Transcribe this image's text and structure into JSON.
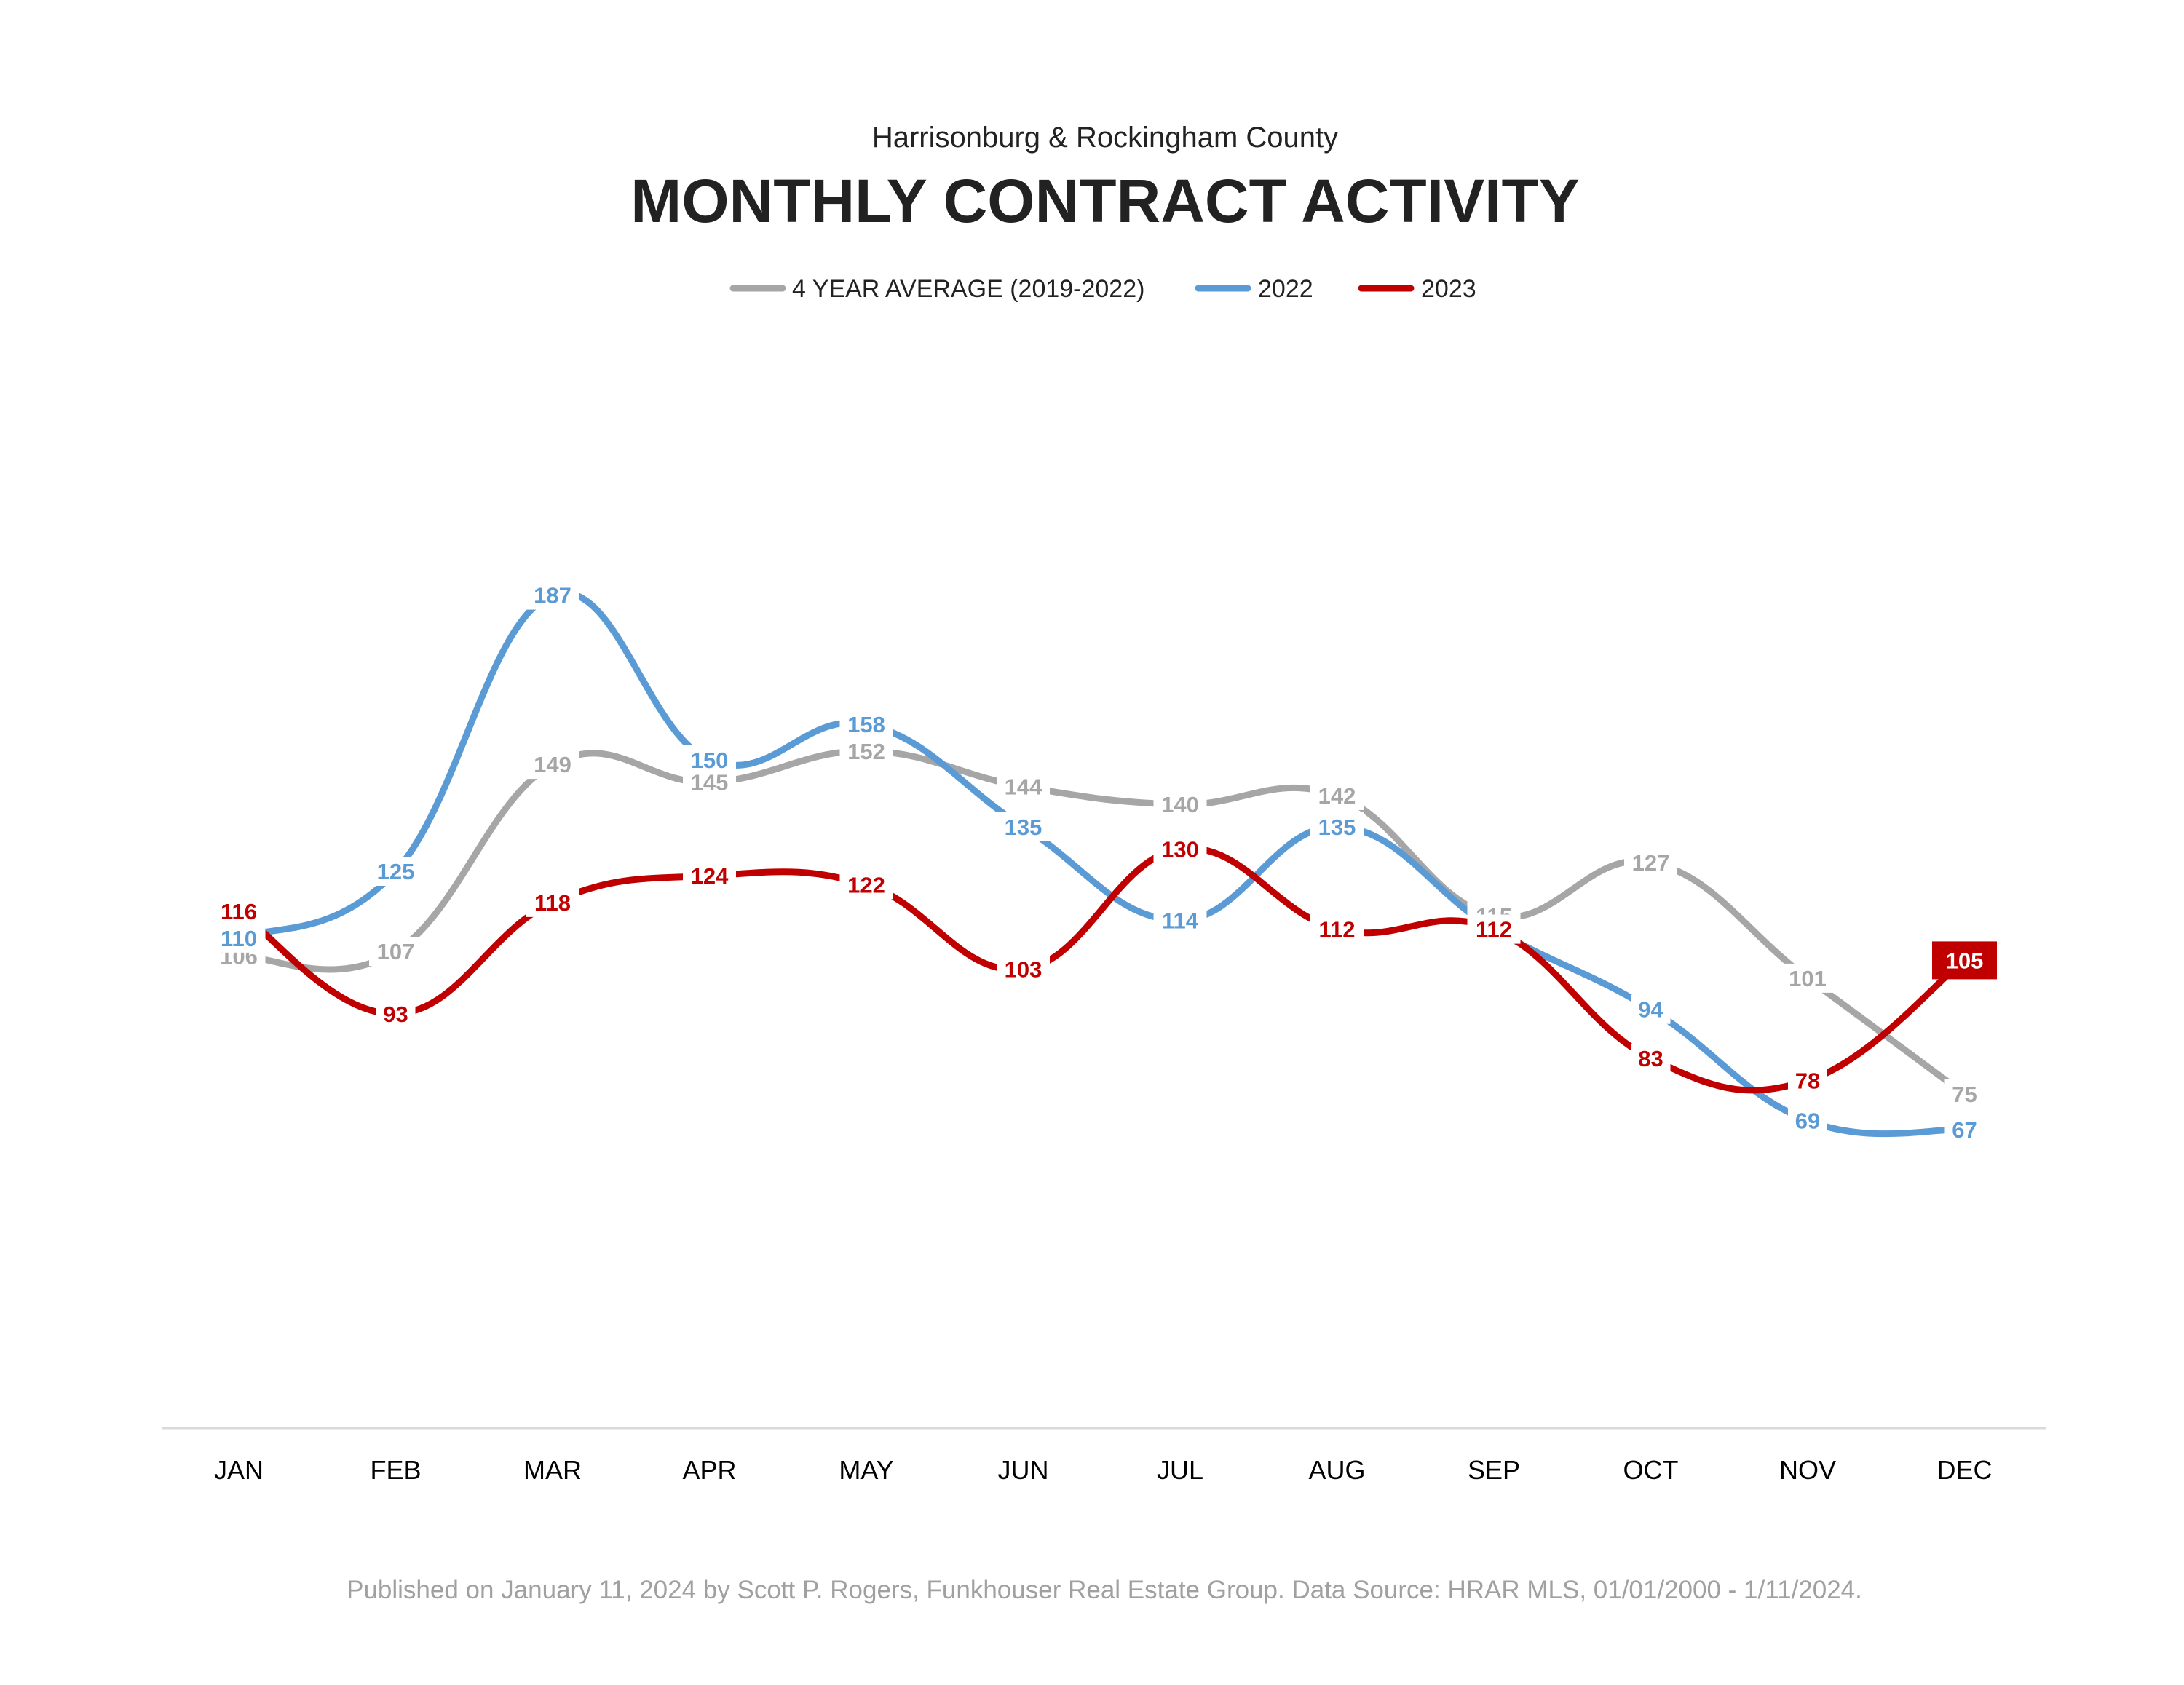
{
  "chart_data": {
    "type": "line",
    "subtitle": "Harrisonburg & Rockingham County",
    "title": "MONTHLY CONTRACT ACTIVITY",
    "categories": [
      "JAN",
      "FEB",
      "MAR",
      "APR",
      "MAY",
      "JUN",
      "JUL",
      "AUG",
      "SEP",
      "OCT",
      "NOV",
      "DEC"
    ],
    "series": [
      {
        "name": "4 YEAR AVERAGE (2019-2022)",
        "color": "#a6a6a6",
        "values": [
          106,
          107,
          149,
          145,
          152,
          144,
          140,
          142,
          115,
          127,
          101,
          75
        ]
      },
      {
        "name": "2022",
        "color": "#5b9bd5",
        "values": [
          110,
          125,
          187,
          150,
          158,
          135,
          114,
          135,
          112,
          94,
          69,
          67
        ]
      },
      {
        "name": "2023",
        "color": "#c00000",
        "values": [
          116,
          93,
          118,
          124,
          122,
          103,
          130,
          112,
          112,
          83,
          78,
          105
        ]
      }
    ],
    "ylim": [
      0,
      200
    ],
    "grid": false,
    "legend": "top-center",
    "footer": "Published on January 11, 2024 by Scott P. Rogers, Funkhouser Real Estate Group. Data Source: HRAR MLS, 01/01/2000 - 1/11/2024."
  }
}
